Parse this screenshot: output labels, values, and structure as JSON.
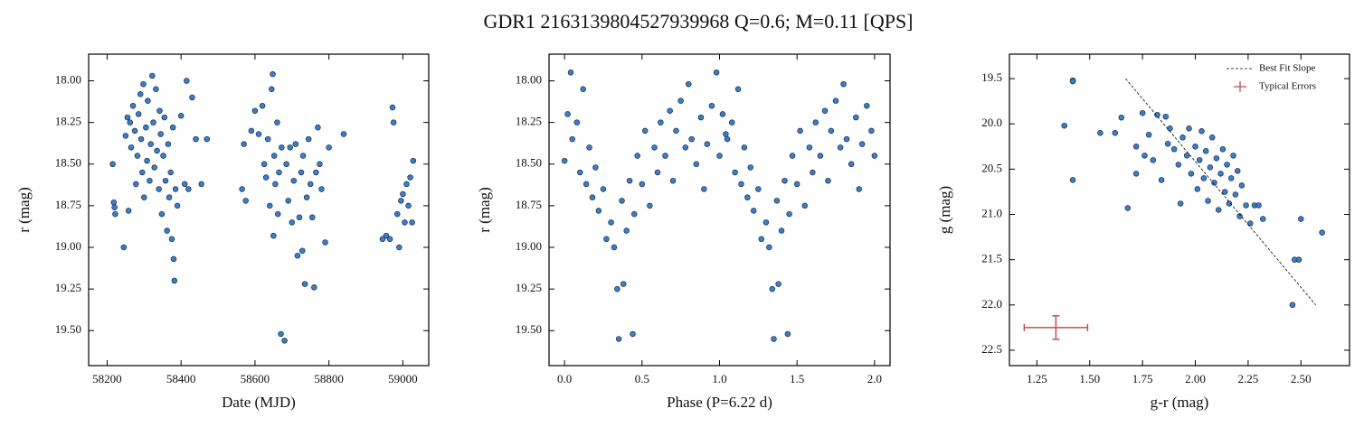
{
  "title": "GDR1 2163139804527939968  Q=0.6; M=0.11 [QPS]",
  "chart_data": [
    {
      "type": "scatter",
      "xlabel": "Date (MJD)",
      "ylabel": "r (mag)",
      "color": "#3a7ecf",
      "xlim": [
        58150,
        59070
      ],
      "ylim": [
        19.71,
        17.84
      ],
      "xticks": [
        58200,
        58400,
        58600,
        58800,
        59000
      ],
      "yticks": [
        {
          "value": 18,
          "label": "18.00"
        },
        18.25,
        {
          "value": 18.5,
          "label": "18.50"
        },
        18.75,
        {
          "value": 19,
          "label": "19.00"
        },
        19.25,
        {
          "value": 19.5,
          "label": "19.50"
        }
      ],
      "x": [
        58215,
        58218,
        58220,
        58222,
        58245,
        58250,
        58255,
        58258,
        58262,
        58265,
        58270,
        58275,
        58278,
        58282,
        58285,
        58290,
        58292,
        58295,
        58298,
        58300,
        58305,
        58308,
        58310,
        58315,
        58318,
        58322,
        58325,
        58328,
        58332,
        58335,
        58340,
        58342,
        58345,
        58348,
        58352,
        58355,
        58358,
        58362,
        58365,
        58368,
        58372,
        58375,
        58378,
        58380,
        58382,
        58385,
        58390,
        58400,
        58410,
        58415,
        58420,
        58430,
        58440,
        58455,
        58470,
        58565,
        58570,
        58575,
        58590,
        58600,
        58610,
        58620,
        58625,
        58630,
        58635,
        58640,
        58645,
        58648,
        58650,
        58652,
        58655,
        58660,
        58662,
        58665,
        58670,
        58672,
        58680,
        58685,
        58690,
        58695,
        58700,
        58705,
        58710,
        58715,
        58720,
        58725,
        58728,
        58730,
        58735,
        58740,
        58745,
        58750,
        58755,
        58760,
        58765,
        58770,
        58775,
        58780,
        58790,
        58800,
        58840,
        58945,
        58955,
        58965,
        58972,
        58975,
        58985,
        58990,
        58995,
        59000,
        59005,
        59010,
        59015,
        59020,
        59025,
        59028
      ],
      "y": [
        18.5,
        18.73,
        18.76,
        18.8,
        19.0,
        18.33,
        18.22,
        18.78,
        18.25,
        18.4,
        18.15,
        18.3,
        18.62,
        18.45,
        18.2,
        18.08,
        18.35,
        18.55,
        18.02,
        18.7,
        18.28,
        18.48,
        18.12,
        18.6,
        18.38,
        17.97,
        18.25,
        18.52,
        18.05,
        18.42,
        18.65,
        18.18,
        18.32,
        18.8,
        18.45,
        18.22,
        18.6,
        18.9,
        18.38,
        18.7,
        18.55,
        18.95,
        18.28,
        19.07,
        19.2,
        18.65,
        18.75,
        18.21,
        18.62,
        18.0,
        18.65,
        18.1,
        18.35,
        18.62,
        18.35,
        18.65,
        18.38,
        18.72,
        18.3,
        18.18,
        18.32,
        18.15,
        18.5,
        18.58,
        18.35,
        18.75,
        18.05,
        17.96,
        18.93,
        18.45,
        18.62,
        18.25,
        18.8,
        18.55,
        19.52,
        18.4,
        19.56,
        18.5,
        18.72,
        18.4,
        18.85,
        18.6,
        18.38,
        19.05,
        18.82,
        18.55,
        19.02,
        18.45,
        19.22,
        18.7,
        18.35,
        18.62,
        18.82,
        19.24,
        18.55,
        18.28,
        18.5,
        18.65,
        18.97,
        18.4,
        18.32,
        18.95,
        18.93,
        18.95,
        18.16,
        18.25,
        18.8,
        19.0,
        18.72,
        18.68,
        18.85,
        18.62,
        18.75,
        18.58,
        18.85,
        18.48
      ]
    },
    {
      "type": "scatter",
      "xlabel": "Phase (P=6.22 d)",
      "ylabel": "r (mag)",
      "color": "#3a7ecf",
      "xlim": [
        -0.1,
        2.1
      ],
      "ylim": [
        19.71,
        17.84
      ],
      "xticks": [
        {
          "value": 0,
          "label": "0.0"
        },
        0.5,
        {
          "value": 1,
          "label": "1.0"
        },
        1.5,
        {
          "value": 2,
          "label": "2.0"
        }
      ],
      "yticks": [
        {
          "value": 18,
          "label": "18.00"
        },
        18.25,
        {
          "value": 18.5,
          "label": "18.50"
        },
        18.75,
        {
          "value": 19,
          "label": "19.00"
        },
        19.25,
        {
          "value": 19.5,
          "label": "19.50"
        }
      ],
      "x": [
        0.0,
        0.02,
        0.04,
        0.05,
        0.08,
        0.1,
        0.12,
        0.14,
        0.16,
        0.18,
        0.2,
        0.22,
        0.25,
        0.27,
        0.3,
        0.32,
        0.34,
        0.35,
        0.37,
        0.38,
        0.4,
        0.42,
        0.44,
        0.45,
        0.47,
        0.5,
        0.52,
        0.55,
        0.58,
        0.6,
        0.62,
        0.65,
        0.68,
        0.7,
        0.72,
        0.75,
        0.78,
        0.8,
        0.82,
        0.85,
        0.88,
        0.9,
        0.92,
        0.95,
        0.98,
        1.0,
        1.02,
        1.04,
        1.05,
        1.08,
        1.1,
        1.12,
        1.14,
        1.16,
        1.18,
        1.2,
        1.22,
        1.25,
        1.27,
        1.3,
        1.32,
        1.34,
        1.35,
        1.37,
        1.38,
        1.4,
        1.42,
        1.44,
        1.45,
        1.47,
        1.5,
        1.52,
        1.55,
        1.58,
        1.6,
        1.62,
        1.65,
        1.68,
        1.7,
        1.72,
        1.75,
        1.78,
        1.8,
        1.82,
        1.85,
        1.88,
        1.9,
        1.92,
        1.95,
        1.98,
        2.0
      ],
      "y": [
        18.48,
        18.2,
        17.95,
        18.35,
        18.25,
        18.55,
        18.05,
        18.62,
        18.4,
        18.7,
        18.52,
        18.78,
        18.65,
        18.95,
        18.85,
        19.0,
        19.25,
        19.55,
        18.72,
        19.22,
        18.9,
        18.6,
        19.52,
        18.8,
        18.45,
        18.62,
        18.3,
        18.75,
        18.4,
        18.55,
        18.25,
        18.45,
        18.18,
        18.6,
        18.3,
        18.12,
        18.4,
        18.02,
        18.35,
        18.5,
        18.22,
        18.65,
        18.38,
        18.15,
        17.95,
        18.45,
        18.2,
        18.32,
        18.35,
        18.25,
        18.55,
        18.05,
        18.62,
        18.4,
        18.7,
        18.52,
        18.78,
        18.65,
        18.95,
        18.85,
        19.0,
        19.25,
        19.55,
        18.72,
        19.22,
        18.9,
        18.6,
        19.52,
        18.8,
        18.45,
        18.62,
        18.3,
        18.75,
        18.4,
        18.55,
        18.25,
        18.45,
        18.18,
        18.6,
        18.3,
        18.12,
        18.4,
        18.02,
        18.35,
        18.5,
        18.22,
        18.65,
        18.38,
        18.15,
        18.3,
        18.45
      ]
    },
    {
      "type": "scatter",
      "xlabel": "g-r (mag)",
      "ylabel": "g (mag)",
      "color": "#3a7ecf",
      "xlim": [
        1.12,
        2.73
      ],
      "ylim": [
        22.67,
        19.23
      ],
      "xticks": [
        1.25,
        {
          "value": 1.5,
          "label": "1.50"
        },
        1.75,
        {
          "value": 2,
          "label": "2.00"
        },
        2.25,
        {
          "value": 2.5,
          "label": "2.50"
        }
      ],
      "yticks": [
        19.5,
        {
          "value": 20,
          "label": "20.0"
        },
        20.5,
        {
          "value": 21,
          "label": "21.0"
        },
        21.5,
        {
          "value": 22,
          "label": "22.0"
        },
        22.5
      ],
      "x": [
        1.42,
        1.42,
        1.38,
        1.42,
        1.55,
        1.62,
        1.65,
        1.68,
        1.72,
        1.72,
        1.75,
        1.76,
        1.78,
        1.8,
        1.82,
        1.84,
        1.86,
        1.87,
        1.88,
        1.9,
        1.92,
        1.93,
        1.94,
        1.96,
        1.97,
        1.98,
        2.0,
        2.01,
        2.02,
        2.03,
        2.04,
        2.05,
        2.06,
        2.07,
        2.08,
        2.09,
        2.1,
        2.11,
        2.12,
        2.13,
        2.14,
        2.15,
        2.16,
        2.17,
        2.18,
        2.19,
        2.2,
        2.21,
        2.22,
        2.24,
        2.26,
        2.28,
        2.3,
        2.32,
        2.46,
        2.47,
        2.49,
        2.5,
        2.6
      ],
      "y": [
        19.52,
        19.53,
        20.02,
        20.62,
        20.1,
        20.1,
        19.93,
        20.93,
        20.25,
        20.55,
        19.88,
        20.35,
        20.12,
        20.4,
        19.9,
        20.62,
        19.92,
        20.22,
        20.05,
        20.28,
        20.45,
        20.88,
        20.15,
        20.35,
        20.05,
        20.55,
        20.25,
        20.72,
        20.4,
        20.08,
        20.6,
        20.3,
        20.85,
        20.48,
        20.15,
        20.65,
        20.38,
        20.95,
        20.55,
        20.28,
        20.75,
        20.45,
        20.88,
        20.6,
        20.35,
        20.78,
        20.52,
        21.02,
        20.68,
        20.9,
        21.1,
        20.9,
        20.9,
        21.05,
        22.0,
        21.5,
        21.5,
        21.05,
        21.2
      ],
      "fit_line": {
        "name": "Best Fit Slope",
        "color": "#000000",
        "x": [
          1.67,
          2.57
        ],
        "y": [
          19.5,
          22.0
        ]
      },
      "error_bar": {
        "name": "Typical Errors",
        "color": "#c44e52",
        "x": 1.34,
        "y": 22.25,
        "xerr": 0.15,
        "yerr": 0.13
      },
      "legend": "upper right"
    }
  ]
}
